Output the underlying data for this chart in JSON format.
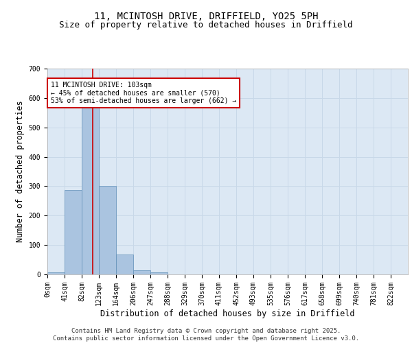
{
  "title_line1": "11, MCINTOSH DRIVE, DRIFFIELD, YO25 5PH",
  "title_line2": "Size of property relative to detached houses in Driffield",
  "xlabel": "Distribution of detached houses by size in Driffield",
  "ylabel": "Number of detached properties",
  "bar_labels": [
    "0sqm",
    "41sqm",
    "82sqm",
    "123sqm",
    "164sqm",
    "206sqm",
    "247sqm",
    "288sqm",
    "329sqm",
    "370sqm",
    "411sqm",
    "452sqm",
    "493sqm",
    "535sqm",
    "576sqm",
    "617sqm",
    "658sqm",
    "699sqm",
    "740sqm",
    "781sqm",
    "822sqm"
  ],
  "bar_values": [
    8,
    287,
    578,
    302,
    68,
    15,
    8,
    0,
    0,
    0,
    0,
    0,
    0,
    0,
    0,
    0,
    0,
    0,
    0,
    0,
    0
  ],
  "bar_color": "#aac4e0",
  "bar_edge_color": "#6090b8",
  "grid_color": "#c8d8e8",
  "bg_color": "#dce8f4",
  "vline_x": 2.62,
  "vline_color": "#cc0000",
  "annotation_text": "11 MCINTOSH DRIVE: 103sqm\n← 45% of detached houses are smaller (570)\n53% of semi-detached houses are larger (662) →",
  "annotation_box_color": "#cc0000",
  "ylim": [
    0,
    700
  ],
  "yticks": [
    0,
    100,
    200,
    300,
    400,
    500,
    600,
    700
  ],
  "footer_text": "Contains HM Land Registry data © Crown copyright and database right 2025.\nContains public sector information licensed under the Open Government Licence v3.0.",
  "title_fontsize": 10,
  "subtitle_fontsize": 9,
  "axis_label_fontsize": 8.5,
  "tick_fontsize": 7,
  "footer_fontsize": 6.5
}
